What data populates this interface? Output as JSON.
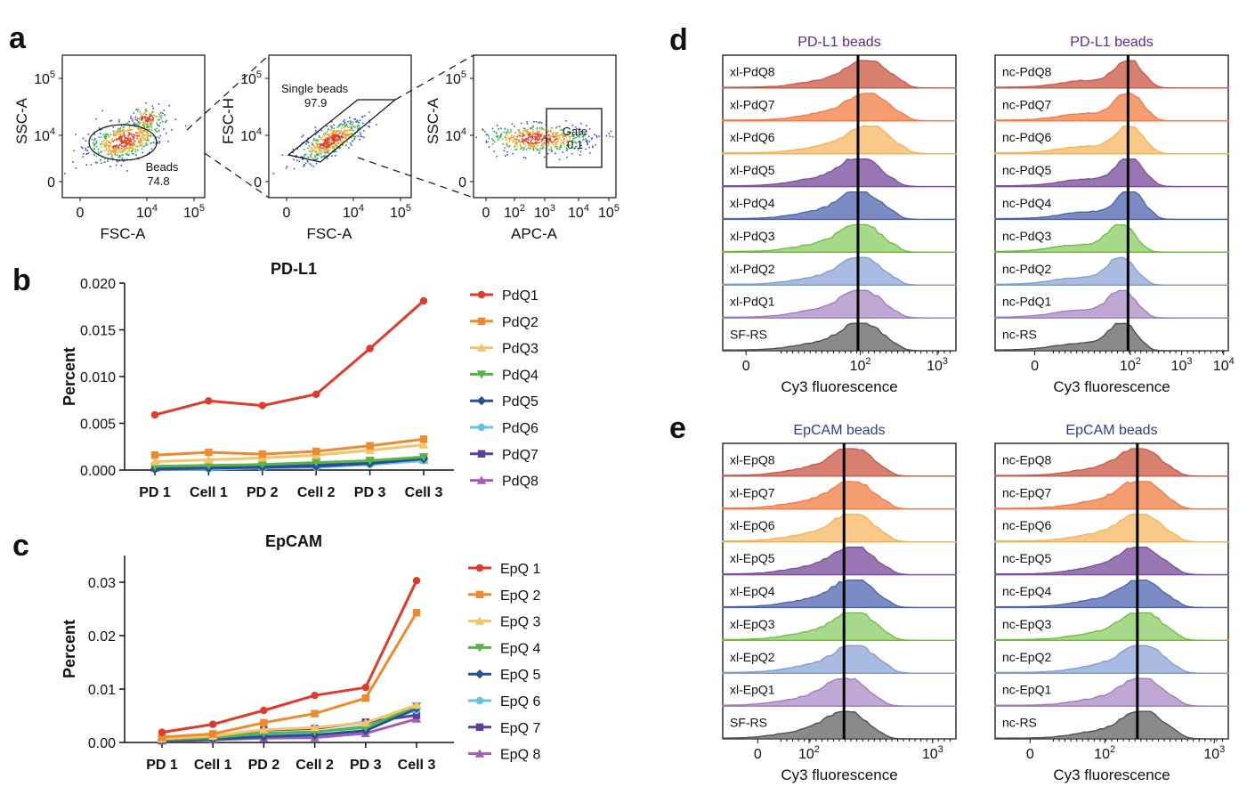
{
  "panel_labels": {
    "a": "a",
    "b": "b",
    "c": "c",
    "d": "d",
    "e": "e"
  },
  "panel_a": {
    "plots": [
      {
        "x_label": "FSC-A",
        "y_label": "SSC-A",
        "x_ticks": [
          "0",
          "10",
          "10"
        ],
        "x_exps": [
          "",
          "4",
          "5"
        ],
        "y_ticks": [
          "0",
          "10",
          "10"
        ],
        "y_exps": [
          "",
          "4",
          "5"
        ],
        "gate_name": "Beads",
        "gate_value": "74.8"
      },
      {
        "x_label": "FSC-A",
        "y_label": "FSC-H",
        "x_ticks": [
          "0",
          "10",
          "10"
        ],
        "x_exps": [
          "",
          "4",
          "5"
        ],
        "y_ticks": [
          "0",
          "10",
          "10"
        ],
        "y_exps": [
          "",
          "4",
          "5"
        ],
        "gate_name": "Single beads",
        "gate_value": "97.9"
      },
      {
        "x_label": "APC-A",
        "y_label": "SSC-A",
        "x_ticks": [
          "0",
          "10",
          "10",
          "10",
          "10"
        ],
        "x_exps": [
          "",
          "2",
          "3",
          "4",
          "5"
        ],
        "y_ticks": [
          "0",
          "10",
          "10"
        ],
        "y_exps": [
          "",
          "4",
          "5"
        ],
        "gate_name": "Gate",
        "gate_value": "0.1"
      }
    ],
    "colors": {
      "scatter_outer": "#3a4fd0",
      "scatter_mid": "#27b34a",
      "scatter_core": "#f0a020",
      "scatter_hot": "#e04020"
    }
  },
  "chart_data": [
    {
      "type": "line",
      "title": "PD-L1",
      "ylabel": "Percent",
      "ylim": [
        0,
        0.02
      ],
      "yticks": [
        "0.000",
        "0.005",
        "0.010",
        "0.015",
        "0.020"
      ],
      "categories": [
        "PD 1",
        "Cell 1",
        "PD 2",
        "Cell 2",
        "PD 3",
        "Cell 3"
      ],
      "series": [
        {
          "name": "PdQ1",
          "color": "#e03a2a",
          "marker": "circle",
          "values": [
            0.0059,
            0.0074,
            0.0069,
            0.0081,
            0.013,
            0.0181
          ]
        },
        {
          "name": "PdQ2",
          "color": "#ef8a2c",
          "marker": "square",
          "values": [
            0.0016,
            0.0019,
            0.0017,
            0.002,
            0.0026,
            0.0033
          ]
        },
        {
          "name": "PdQ3",
          "color": "#f6c26a",
          "marker": "triangle-up",
          "values": [
            0.0009,
            0.0011,
            0.0013,
            0.0016,
            0.0021,
            0.0027
          ]
        },
        {
          "name": "PdQ4",
          "color": "#55b644",
          "marker": "triangle-down",
          "values": [
            0.0004,
            0.0005,
            0.0006,
            0.0008,
            0.001,
            0.0014
          ]
        },
        {
          "name": "PdQ5",
          "color": "#254f9a",
          "marker": "diamond",
          "values": [
            0.0001,
            0.0002,
            0.0003,
            0.0004,
            0.0007,
            0.0012
          ]
        },
        {
          "name": "PdQ6",
          "color": "#63c4e8",
          "marker": "circle",
          "values": [
            0.0001,
            0.0001,
            0.0002,
            0.0003,
            0.0006,
            0.001
          ]
        },
        {
          "name": "PdQ7",
          "color": "#5b3f9b",
          "marker": "square",
          "values": [
            0.0003,
            0.0004,
            0.0005,
            0.0006,
            0.001,
            0.0013
          ]
        },
        {
          "name": "PdQ8",
          "color": "#a45cb8",
          "marker": "triangle-up",
          "values": [
            0.0002,
            0.0003,
            0.0004,
            0.0005,
            0.0008,
            0.0011
          ]
        }
      ]
    },
    {
      "type": "line",
      "title": "EpCAM",
      "ylabel": "Percent",
      "ylim": [
        0,
        0.035
      ],
      "yticks": [
        "0.00",
        "0.01",
        "0.02",
        "0.03"
      ],
      "categories": [
        "PD 1",
        "Cell 1",
        "PD 2",
        "Cell 2",
        "PD 3",
        "Cell 3"
      ],
      "series": [
        {
          "name": "EpQ 1",
          "color": "#e03a2a",
          "marker": "circle",
          "values": [
            0.0019,
            0.0034,
            0.006,
            0.0088,
            0.0103,
            0.0303
          ]
        },
        {
          "name": "EpQ 2",
          "color": "#ef8a2c",
          "marker": "square",
          "values": [
            0.001,
            0.0016,
            0.0037,
            0.0054,
            0.0083,
            0.0243
          ]
        },
        {
          "name": "EpQ 3",
          "color": "#f6c26a",
          "marker": "triangle-up",
          "values": [
            0.0007,
            0.0012,
            0.0024,
            0.0028,
            0.0037,
            0.007
          ]
        },
        {
          "name": "EpQ 4",
          "color": "#55b644",
          "marker": "triangle-down",
          "values": [
            0.0005,
            0.0009,
            0.0017,
            0.002,
            0.0028,
            0.0068
          ]
        },
        {
          "name": "EpQ 5",
          "color": "#254f9a",
          "marker": "diamond",
          "values": [
            0.0004,
            0.0006,
            0.0011,
            0.0014,
            0.0022,
            0.0064
          ]
        },
        {
          "name": "EpQ 6",
          "color": "#63c4e8",
          "marker": "circle",
          "values": [
            0.0005,
            0.0008,
            0.0016,
            0.0019,
            0.0031,
            0.006
          ]
        },
        {
          "name": "EpQ 7",
          "color": "#5b3f9b",
          "marker": "square",
          "values": [
            0.0006,
            0.0011,
            0.0023,
            0.0026,
            0.0038,
            0.0051
          ]
        },
        {
          "name": "EpQ 8",
          "color": "#a45cb8",
          "marker": "triangle-up",
          "values": [
            0.0003,
            0.0005,
            0.0008,
            0.0009,
            0.0017,
            0.0044
          ]
        }
      ]
    }
  ],
  "histograms": {
    "colors": [
      "#c6594a",
      "#ef7a45",
      "#f4b055",
      "#7b4d9a",
      "#4a62a8",
      "#6cbb3a",
      "#7f9bcc",
      "#9c78b8",
      "#4a4a4a"
    ],
    "fills": [
      "#d8806f",
      "#f49d70",
      "#f9c98a",
      "#9876b4",
      "#7b8cc4",
      "#a7d98a",
      "#a9bbe0",
      "#c1a8d4",
      "#8a8a8a"
    ],
    "panel_d": {
      "title_color": "#5d2a94",
      "left": {
        "title": "PD-L1 beads",
        "labels": [
          "xl-PdQ8",
          "xl-PdQ7",
          "xl-PdQ6",
          "xl-PdQ5",
          "xl-PdQ4",
          "xl-PdQ3",
          "xl-PdQ2",
          "xl-PdQ1",
          "SF-RS"
        ],
        "ticks": [
          "0",
          "10",
          "10"
        ],
        "tick_exps": [
          "",
          "2",
          "3"
        ],
        "xlabel": "Cy3 fluorescence"
      },
      "right": {
        "title": "PD-L1 beads",
        "labels": [
          "nc-PdQ8",
          "nc-PdQ7",
          "nc-PdQ6",
          "nc-PdQ5",
          "nc-PdQ4",
          "nc-PdQ3",
          "nc-PdQ2",
          "nc-PdQ1",
          "nc-RS"
        ],
        "ticks": [
          "0",
          "10",
          "10",
          "10"
        ],
        "tick_exps": [
          "",
          "2",
          "3",
          "4"
        ],
        "xlabel": "Cy3 fluorescence"
      }
    },
    "panel_e": {
      "title_color": "#2a3f94",
      "left": {
        "title": "EpCAM beads",
        "labels": [
          "xl-EpQ8",
          "xl-EpQ7",
          "xl-EpQ6",
          "xl-EpQ5",
          "xl-EpQ4",
          "xl-EpQ3",
          "xl-EpQ2",
          "xl-EpQ1",
          "SF-RS"
        ],
        "ticks": [
          "0",
          "10",
          "10"
        ],
        "tick_exps": [
          "",
          "2",
          "3"
        ],
        "xlabel": "Cy3 fluorescence"
      },
      "right": {
        "title": "EpCAM beads",
        "labels": [
          "nc-EpQ8",
          "nc-EpQ7",
          "nc-EpQ6",
          "nc-EpQ5",
          "nc-EpQ4",
          "nc-EpQ3",
          "nc-EpQ2",
          "nc-EpQ1",
          "nc-RS"
        ],
        "ticks": [
          "0",
          "10",
          "10"
        ],
        "tick_exps": [
          "",
          "2",
          "3"
        ],
        "xlabel": "Cy3 fluorescence"
      }
    }
  }
}
